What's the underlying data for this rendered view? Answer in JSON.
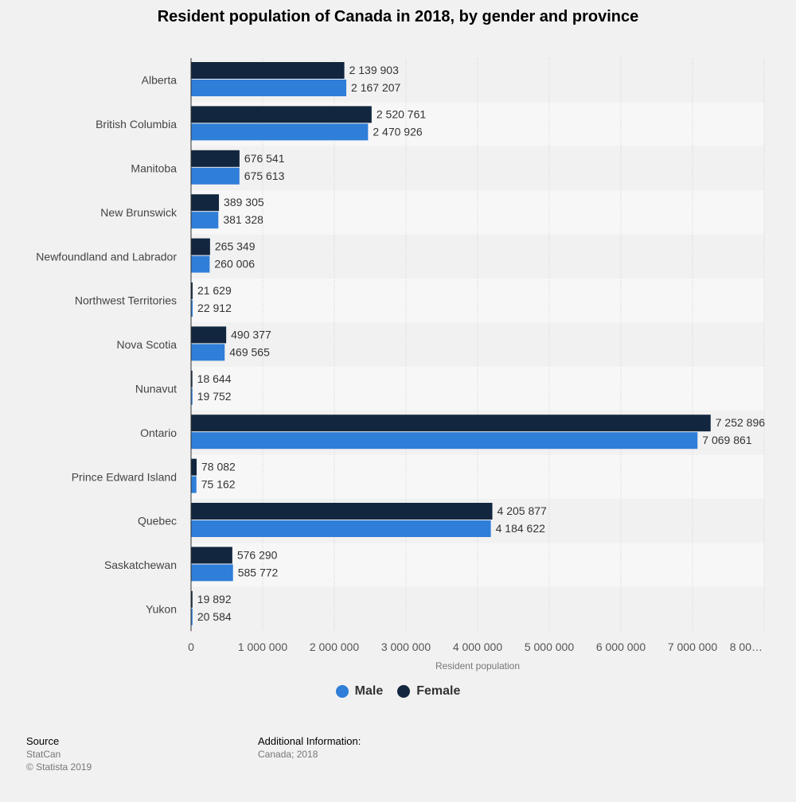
{
  "title": "Resident population of Canada in 2018, by gender and province",
  "legend": {
    "male_label": "Male",
    "female_label": "Female"
  },
  "colors": {
    "male": "#2f7ed8",
    "female": "#12263f",
    "bg": "#f1f1f1",
    "band": "#f7f7f7"
  },
  "footer": {
    "source_head": "Source",
    "source_name": "StatCan",
    "copyright": "© Statista 2019",
    "info_head": "Additional Information:",
    "info_text": "Canada; 2018"
  },
  "chart_data": {
    "type": "bar",
    "orientation": "horizontal",
    "title": "Resident population of Canada in 2018, by gender and province",
    "xlabel": "Resident population",
    "ylabel": "",
    "xlim": [
      0,
      8000000
    ],
    "x_ticks": [
      0,
      1000000,
      2000000,
      3000000,
      4000000,
      5000000,
      6000000,
      7000000,
      8000000
    ],
    "x_tick_labels": [
      "0",
      "1 000 000",
      "2 000 000",
      "3 000 000",
      "4 000 000",
      "5 000 000",
      "6 000 000",
      "7 000 000",
      "8 00…"
    ],
    "grid": true,
    "legend_position": "bottom",
    "categories": [
      "Alberta",
      "British Columbia",
      "Manitoba",
      "New Brunswick",
      "Newfoundland and Labrador",
      "Northwest Territories",
      "Nova Scotia",
      "Nunavut",
      "Ontario",
      "Prince Edward Island",
      "Quebec",
      "Saskatchewan",
      "Yukon"
    ],
    "series": [
      {
        "name": "Female",
        "values": [
          2139903,
          2520761,
          676541,
          389305,
          265349,
          21629,
          490377,
          18644,
          7252896,
          78082,
          4205877,
          576290,
          19892
        ],
        "labels": [
          "2 139 903",
          "2 520 761",
          "676 541",
          "389 305",
          "265 349",
          "21 629",
          "490 377",
          "18 644",
          "7 252 896",
          "78 082",
          "4 205 877",
          "576 290",
          "19 892"
        ]
      },
      {
        "name": "Male",
        "values": [
          2167207,
          2470926,
          675613,
          381328,
          260006,
          22912,
          469565,
          19752,
          7069861,
          75162,
          4184622,
          585772,
          20584
        ],
        "labels": [
          "2 167 207",
          "2 470 926",
          "675 613",
          "381 328",
          "260 006",
          "22 912",
          "469 565",
          "19 752",
          "7 069 861",
          "75 162",
          "4 184 622",
          "585 772",
          "20 584"
        ]
      }
    ]
  }
}
